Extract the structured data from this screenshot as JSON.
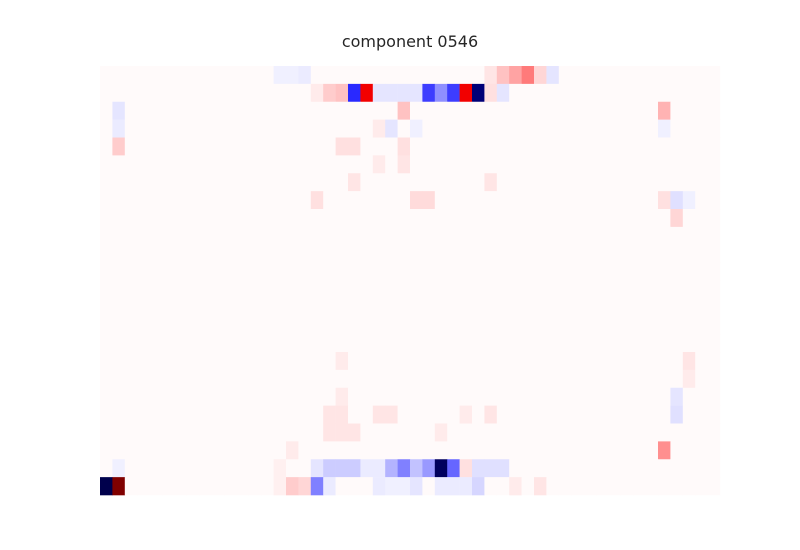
{
  "chart_data": {
    "type": "heatmap",
    "title": "component 0546",
    "xlabel": "",
    "ylabel": "",
    "axes_visible": false,
    "grid": false,
    "colormap": "seismic",
    "value_range": [
      -1,
      1
    ],
    "n_rows": 24,
    "n_cols": 50,
    "background_value": 0.01,
    "cells": [
      {
        "row": 0,
        "col": 14,
        "value": -0.03
      },
      {
        "row": 0,
        "col": 15,
        "value": -0.03
      },
      {
        "row": 0,
        "col": 16,
        "value": -0.04
      },
      {
        "row": 0,
        "col": 31,
        "value": 0.05
      },
      {
        "row": 0,
        "col": 32,
        "value": 0.12
      },
      {
        "row": 0,
        "col": 33,
        "value": 0.18
      },
      {
        "row": 0,
        "col": 34,
        "value": 0.26
      },
      {
        "row": 0,
        "col": 35,
        "value": 0.08
      },
      {
        "row": 0,
        "col": 36,
        "value": -0.05
      },
      {
        "row": 1,
        "col": 17,
        "value": 0.04
      },
      {
        "row": 1,
        "col": 18,
        "value": 0.1
      },
      {
        "row": 1,
        "col": 19,
        "value": 0.12
      },
      {
        "row": 1,
        "col": 20,
        "value": -0.42
      },
      {
        "row": 1,
        "col": 21,
        "value": 0.55
      },
      {
        "row": 1,
        "col": 22,
        "value": -0.05
      },
      {
        "row": 1,
        "col": 23,
        "value": -0.05
      },
      {
        "row": 1,
        "col": 24,
        "value": -0.05
      },
      {
        "row": 1,
        "col": 25,
        "value": -0.05
      },
      {
        "row": 1,
        "col": 26,
        "value": -0.38
      },
      {
        "row": 1,
        "col": 27,
        "value": -0.22
      },
      {
        "row": 1,
        "col": 28,
        "value": -0.38
      },
      {
        "row": 1,
        "col": 29,
        "value": 0.55
      },
      {
        "row": 1,
        "col": 30,
        "value": -0.88
      },
      {
        "row": 1,
        "col": 31,
        "value": 0.06
      },
      {
        "row": 1,
        "col": 32,
        "value": -0.05
      },
      {
        "row": 2,
        "col": 1,
        "value": -0.05
      },
      {
        "row": 2,
        "col": 24,
        "value": 0.12
      },
      {
        "row": 2,
        "col": 45,
        "value": 0.15
      },
      {
        "row": 3,
        "col": 1,
        "value": -0.04
      },
      {
        "row": 3,
        "col": 22,
        "value": 0.04
      },
      {
        "row": 3,
        "col": 23,
        "value": -0.05
      },
      {
        "row": 3,
        "col": 25,
        "value": -0.03
      },
      {
        "row": 3,
        "col": 45,
        "value": -0.03
      },
      {
        "row": 4,
        "col": 1,
        "value": 0.1
      },
      {
        "row": 4,
        "col": 19,
        "value": 0.06
      },
      {
        "row": 4,
        "col": 20,
        "value": 0.06
      },
      {
        "row": 4,
        "col": 24,
        "value": 0.06
      },
      {
        "row": 5,
        "col": 22,
        "value": 0.04
      },
      {
        "row": 5,
        "col": 24,
        "value": 0.05
      },
      {
        "row": 6,
        "col": 20,
        "value": 0.05
      },
      {
        "row": 6,
        "col": 31,
        "value": 0.05
      },
      {
        "row": 7,
        "col": 17,
        "value": 0.06
      },
      {
        "row": 7,
        "col": 25,
        "value": 0.07
      },
      {
        "row": 7,
        "col": 26,
        "value": 0.07
      },
      {
        "row": 7,
        "col": 45,
        "value": 0.06
      },
      {
        "row": 7,
        "col": 46,
        "value": -0.06
      },
      {
        "row": 7,
        "col": 47,
        "value": -0.03
      },
      {
        "row": 8,
        "col": 46,
        "value": 0.08
      },
      {
        "row": 16,
        "col": 47,
        "value": 0.05
      },
      {
        "row": 16,
        "col": 19,
        "value": 0.04
      },
      {
        "row": 17,
        "col": 47,
        "value": 0.04
      },
      {
        "row": 18,
        "col": 19,
        "value": 0.04
      },
      {
        "row": 18,
        "col": 46,
        "value": -0.05
      },
      {
        "row": 19,
        "col": 18,
        "value": 0.05
      },
      {
        "row": 19,
        "col": 19,
        "value": 0.05
      },
      {
        "row": 19,
        "col": 22,
        "value": 0.05
      },
      {
        "row": 19,
        "col": 23,
        "value": 0.05
      },
      {
        "row": 19,
        "col": 29,
        "value": 0.04
      },
      {
        "row": 19,
        "col": 31,
        "value": 0.05
      },
      {
        "row": 19,
        "col": 46,
        "value": -0.06
      },
      {
        "row": 20,
        "col": 18,
        "value": 0.05
      },
      {
        "row": 20,
        "col": 19,
        "value": 0.05
      },
      {
        "row": 20,
        "col": 20,
        "value": 0.05
      },
      {
        "row": 20,
        "col": 27,
        "value": 0.04
      },
      {
        "row": 21,
        "col": 15,
        "value": 0.04
      },
      {
        "row": 21,
        "col": 45,
        "value": 0.22
      },
      {
        "row": 22,
        "col": 1,
        "value": -0.03
      },
      {
        "row": 22,
        "col": 14,
        "value": 0.03
      },
      {
        "row": 22,
        "col": 17,
        "value": -0.05
      },
      {
        "row": 22,
        "col": 18,
        "value": -0.1
      },
      {
        "row": 22,
        "col": 19,
        "value": -0.1
      },
      {
        "row": 22,
        "col": 20,
        "value": -0.1
      },
      {
        "row": 22,
        "col": 21,
        "value": -0.04
      },
      {
        "row": 22,
        "col": 22,
        "value": -0.04
      },
      {
        "row": 22,
        "col": 23,
        "value": -0.15
      },
      {
        "row": 22,
        "col": 24,
        "value": -0.25
      },
      {
        "row": 22,
        "col": 25,
        "value": -0.12
      },
      {
        "row": 22,
        "col": 26,
        "value": -0.2
      },
      {
        "row": 22,
        "col": 27,
        "value": -0.95
      },
      {
        "row": 22,
        "col": 28,
        "value": -0.3
      },
      {
        "row": 22,
        "col": 29,
        "value": 0.06
      },
      {
        "row": 22,
        "col": 30,
        "value": -0.06
      },
      {
        "row": 22,
        "col": 31,
        "value": -0.06
      },
      {
        "row": 22,
        "col": 32,
        "value": -0.06
      },
      {
        "row": 23,
        "col": 0,
        "value": -1.0
      },
      {
        "row": 23,
        "col": 1,
        "value": 1.0
      },
      {
        "row": 23,
        "col": 14,
        "value": 0.03
      },
      {
        "row": 23,
        "col": 15,
        "value": 0.1
      },
      {
        "row": 23,
        "col": 16,
        "value": 0.08
      },
      {
        "row": 23,
        "col": 17,
        "value": -0.25
      },
      {
        "row": 23,
        "col": 18,
        "value": -0.04
      },
      {
        "row": 23,
        "col": 22,
        "value": -0.04
      },
      {
        "row": 23,
        "col": 23,
        "value": -0.03
      },
      {
        "row": 23,
        "col": 24,
        "value": -0.03
      },
      {
        "row": 23,
        "col": 25,
        "value": -0.05
      },
      {
        "row": 23,
        "col": 27,
        "value": -0.04
      },
      {
        "row": 23,
        "col": 28,
        "value": -0.04
      },
      {
        "row": 23,
        "col": 29,
        "value": -0.04
      },
      {
        "row": 23,
        "col": 30,
        "value": -0.08
      },
      {
        "row": 23,
        "col": 33,
        "value": 0.04
      },
      {
        "row": 23,
        "col": 35,
        "value": 0.05
      }
    ]
  }
}
